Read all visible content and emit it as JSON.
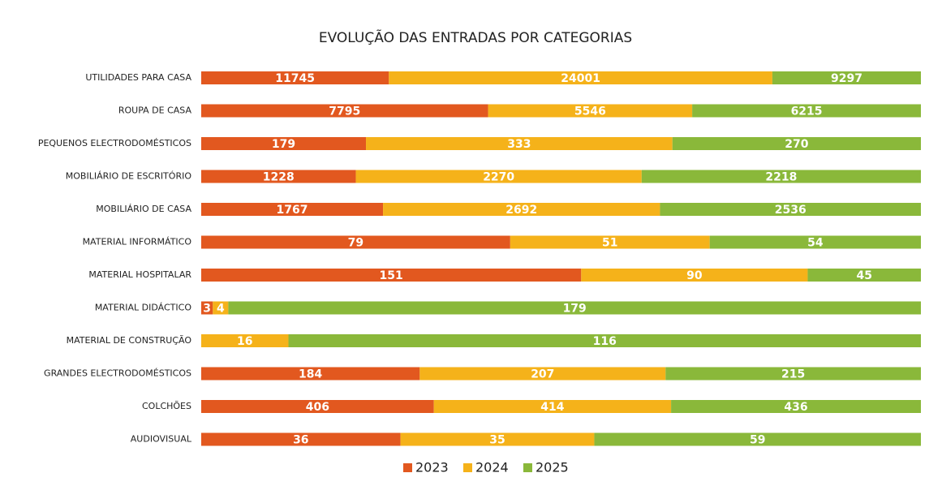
{
  "chart_data": {
    "type": "bar_stacked_100",
    "orientation": "horizontal",
    "title": "EVOLUÇÃO DAS ENTRADAS POR CATEGORIAS",
    "categories": [
      "UTILIDADES PARA CASA",
      "ROUPA DE CASA",
      "PEQUENOS ELECTRODOMÉSTICOS",
      "MOBILIÁRIO DE ESCRITÓRIO",
      "MOBILIÁRIO DE CASA",
      "MATERIAL INFORMÁTICO",
      "MATERIAL HOSPITALAR",
      "MATERIAL DIDÁCTICO",
      "MATERIAL DE CONSTRUÇÃO",
      "GRANDES ELECTRODOMÉSTICOS",
      "COLCHÕES",
      "AUDIOVISUAL"
    ],
    "series": [
      {
        "name": "2023",
        "color": "#e2581f",
        "values": [
          11745,
          7795,
          179,
          1228,
          1767,
          79,
          151,
          3,
          0,
          184,
          406,
          36
        ]
      },
      {
        "name": "2024",
        "color": "#f5b21a",
        "values": [
          24001,
          5546,
          333,
          2270,
          2692,
          51,
          90,
          4,
          16,
          207,
          414,
          35
        ]
      },
      {
        "name": "2025",
        "color": "#8ab83a",
        "values": [
          9297,
          6215,
          270,
          2218,
          2536,
          54,
          45,
          179,
          116,
          215,
          436,
          59
        ]
      }
    ],
    "legend": "bottom"
  }
}
